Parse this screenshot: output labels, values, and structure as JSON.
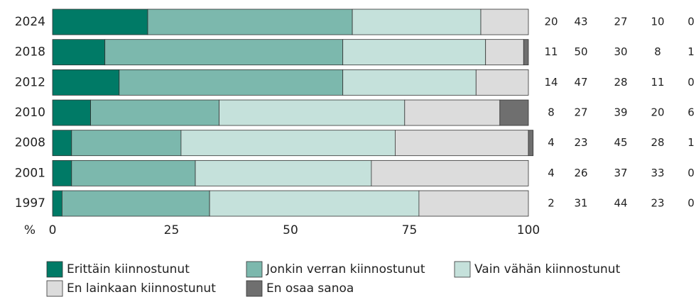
{
  "chart_data": {
    "type": "stacked_bar_horizontal",
    "categories": [
      "2024",
      "2018",
      "2012",
      "2010",
      "2008",
      "2001",
      "1997"
    ],
    "series": [
      {
        "name": "Erittäin kiinnostunut",
        "color": "#007a66",
        "values": [
          20,
          11,
          14,
          8,
          4,
          4,
          2
        ]
      },
      {
        "name": "Jonkin verran kiinnostunut",
        "color": "#7cb8ad",
        "values": [
          43,
          50,
          47,
          27,
          23,
          26,
          31
        ]
      },
      {
        "name": "Vain vähän kiinnostunut",
        "color": "#c5e1db",
        "values": [
          27,
          30,
          28,
          39,
          45,
          37,
          44
        ]
      },
      {
        "name": "En lainkaan kiinnostunut",
        "color": "#dcdcdc",
        "values": [
          10,
          8,
          11,
          20,
          28,
          33,
          23
        ]
      },
      {
        "name": "En osaa sanoa",
        "color": "#6f6f6f",
        "values": [
          0,
          1,
          0,
          6,
          1,
          0,
          0
        ]
      }
    ],
    "x_label": "%",
    "xlim": [
      0,
      100
    ],
    "xticks": [
      0,
      25,
      50,
      75,
      100
    ]
  }
}
